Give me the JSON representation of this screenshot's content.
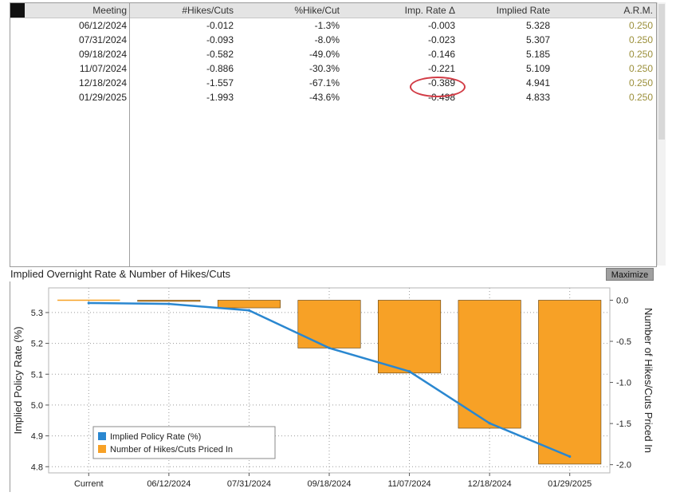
{
  "table": {
    "headers": [
      "Meeting",
      "#Hikes/Cuts",
      "%Hike/Cut",
      "Imp. Rate Δ",
      "Implied Rate",
      "A.R.M."
    ],
    "rows": [
      [
        "06/12/2024",
        "-0.012",
        "-1.3%",
        "-0.003",
        "5.328",
        "0.250"
      ],
      [
        "07/31/2024",
        "-0.093",
        "-8.0%",
        "-0.023",
        "5.307",
        "0.250"
      ],
      [
        "09/18/2024",
        "-0.582",
        "-49.0%",
        "-0.146",
        "5.185",
        "0.250"
      ],
      [
        "11/07/2024",
        "-0.886",
        "-30.3%",
        "-0.221",
        "5.109",
        "0.250"
      ],
      [
        "12/18/2024",
        "-1.557",
        "-67.1%",
        "-0.389",
        "4.941",
        "0.250"
      ],
      [
        "01/29/2025",
        "-1.993",
        "-43.6%",
        "-0.498",
        "4.833",
        "0.250"
      ]
    ]
  },
  "chart_header": {
    "title": "Implied Overnight Rate & Number of Hikes/Cuts",
    "maximize_label": "Maximize"
  },
  "colors": {
    "line": "#2a87d0",
    "bar": "#f7a126",
    "highlight": "#d23b45",
    "arm_text": "#9b8f3a"
  },
  "chart_data": {
    "type": "bar+line",
    "categories": [
      "Current",
      "06/12/2024",
      "07/31/2024",
      "09/18/2024",
      "11/07/2024",
      "12/18/2024",
      "01/29/2025"
    ],
    "series": [
      {
        "name": "Implied Policy Rate (%)",
        "type": "line",
        "axis": "left",
        "values": [
          5.331,
          5.328,
          5.307,
          5.185,
          5.109,
          4.941,
          4.833
        ]
      },
      {
        "name": "Number of Hikes/Cuts Priced In",
        "type": "bar",
        "axis": "right",
        "values": [
          0,
          -0.012,
          -0.093,
          -0.582,
          -0.886,
          -1.557,
          -1.993
        ]
      }
    ],
    "ylabel": "Implied Policy Rate (%)",
    "y2label": "Number of Hikes/Cuts Priced In",
    "ylim": [
      4.78,
      5.38
    ],
    "y2lim": [
      -2.1,
      0.15
    ],
    "yticks": [
      "5.3",
      "5.2",
      "5.1",
      "5.0",
      "4.9",
      "4.8"
    ],
    "y2ticks": [
      "0.0",
      "-0.5",
      "-1.0",
      "-1.5",
      "-2.0"
    ],
    "grid": true,
    "legend_position": "bottom-left"
  }
}
